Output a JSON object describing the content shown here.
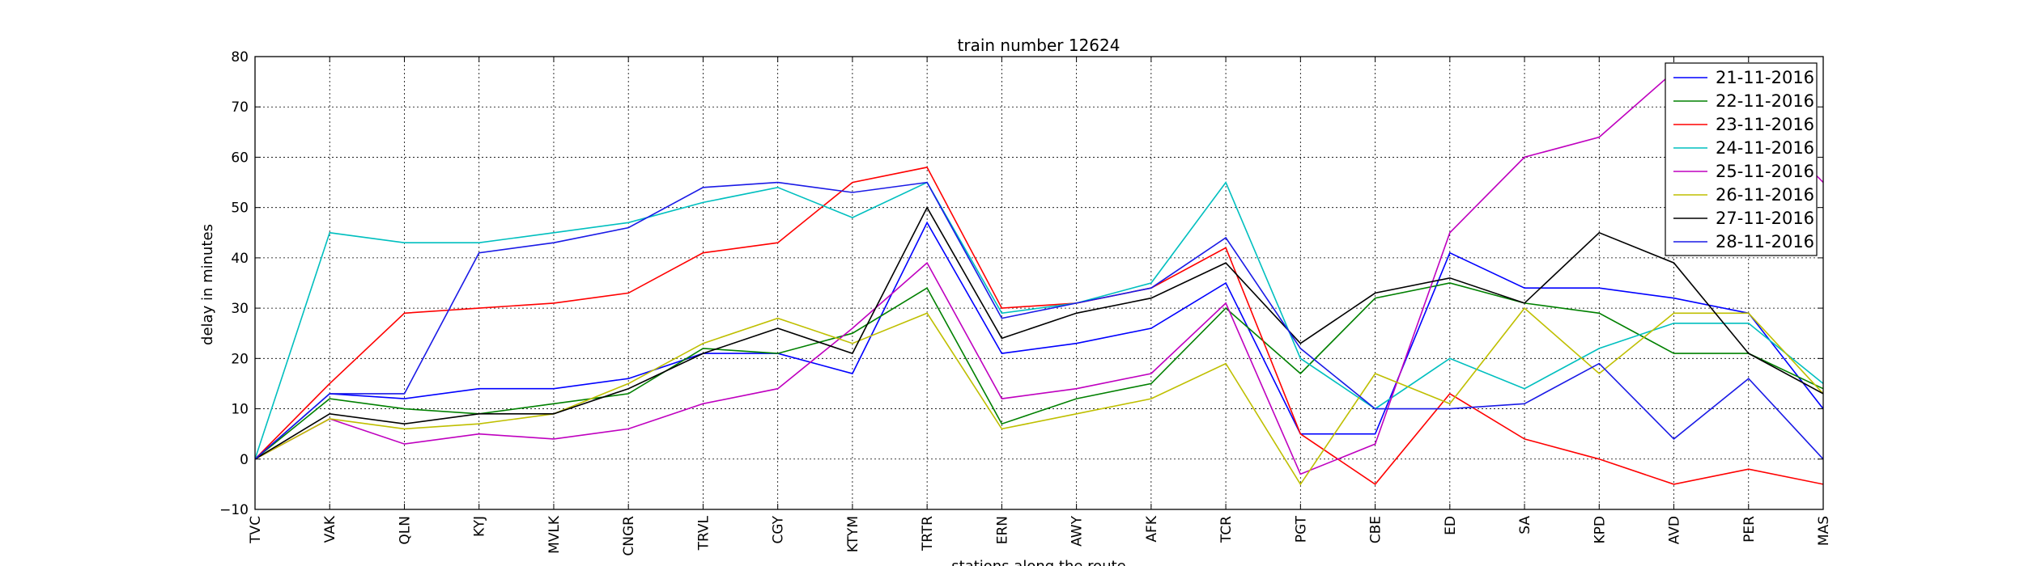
{
  "chart_data": {
    "type": "line",
    "title": "train number 12624",
    "xlabel": "stations along the route",
    "ylabel": "delay in minutes",
    "ylim": [
      -10,
      80
    ],
    "yticks": [
      "80",
      "70",
      "60",
      "50",
      "40",
      "30",
      "20",
      "10",
      "0",
      "−10"
    ],
    "grid": true,
    "legend_position": "top-right",
    "categories": [
      "TVC",
      "VAK",
      "QLN",
      "KYJ",
      "MVLK",
      "CNGR",
      "TRVL",
      "CGY",
      "KTYM",
      "TRTR",
      "ERN",
      "AWY",
      "AFK",
      "TCR",
      "PGT",
      "CBE",
      "ED",
      "SA",
      "KPD",
      "AVD",
      "PER",
      "MAS"
    ],
    "series": [
      {
        "name": "21-11-2016",
        "color": "#0000ff",
        "values": [
          0,
          13,
          12,
          14,
          14,
          16,
          21,
          21,
          17,
          47,
          21,
          23,
          26,
          35,
          5,
          5,
          41,
          34,
          34,
          32,
          29,
          10
        ]
      },
      {
        "name": "22-11-2016",
        "color": "#008000",
        "values": [
          0,
          12,
          10,
          9,
          11,
          13,
          22,
          21,
          25,
          34,
          7,
          12,
          15,
          30,
          17,
          32,
          35,
          31,
          29,
          21,
          21,
          14
        ]
      },
      {
        "name": "23-11-2016",
        "color": "#ff0000",
        "values": [
          0,
          15,
          29,
          30,
          31,
          33,
          41,
          43,
          55,
          58,
          30,
          31,
          34,
          42,
          5,
          -5,
          13,
          4,
          0,
          -5,
          -2,
          -5
        ]
      },
      {
        "name": "24-11-2016",
        "color": "#00bfbf",
        "values": [
          0,
          45,
          43,
          43,
          45,
          47,
          51,
          54,
          48,
          55,
          29,
          31,
          35,
          55,
          20,
          10,
          20,
          14,
          22,
          27,
          27,
          15
        ]
      },
      {
        "name": "25-11-2016",
        "color": "#bf00bf",
        "values": [
          0,
          8,
          3,
          5,
          4,
          6,
          11,
          14,
          26,
          39,
          12,
          14,
          17,
          31,
          -3,
          3,
          45,
          60,
          64,
          77,
          70,
          55
        ]
      },
      {
        "name": "26-11-2016",
        "color": "#bfbf00",
        "values": [
          0,
          8,
          6,
          7,
          9,
          15,
          23,
          28,
          23,
          29,
          6,
          9,
          12,
          19,
          -5,
          17,
          11,
          30,
          17,
          29,
          29,
          13
        ]
      },
      {
        "name": "27-11-2016",
        "color": "#000000",
        "values": [
          0,
          9,
          7,
          9,
          9,
          14,
          21,
          26,
          21,
          50,
          24,
          29,
          32,
          39,
          23,
          33,
          36,
          31,
          45,
          39,
          21,
          13
        ]
      },
      {
        "name": "28-11-2016",
        "color": "#1a1ae6",
        "values": [
          0,
          13,
          13,
          41,
          43,
          46,
          54,
          55,
          53,
          55,
          28,
          31,
          34,
          44,
          22,
          10,
          10,
          11,
          19,
          4,
          16,
          0
        ]
      }
    ]
  }
}
